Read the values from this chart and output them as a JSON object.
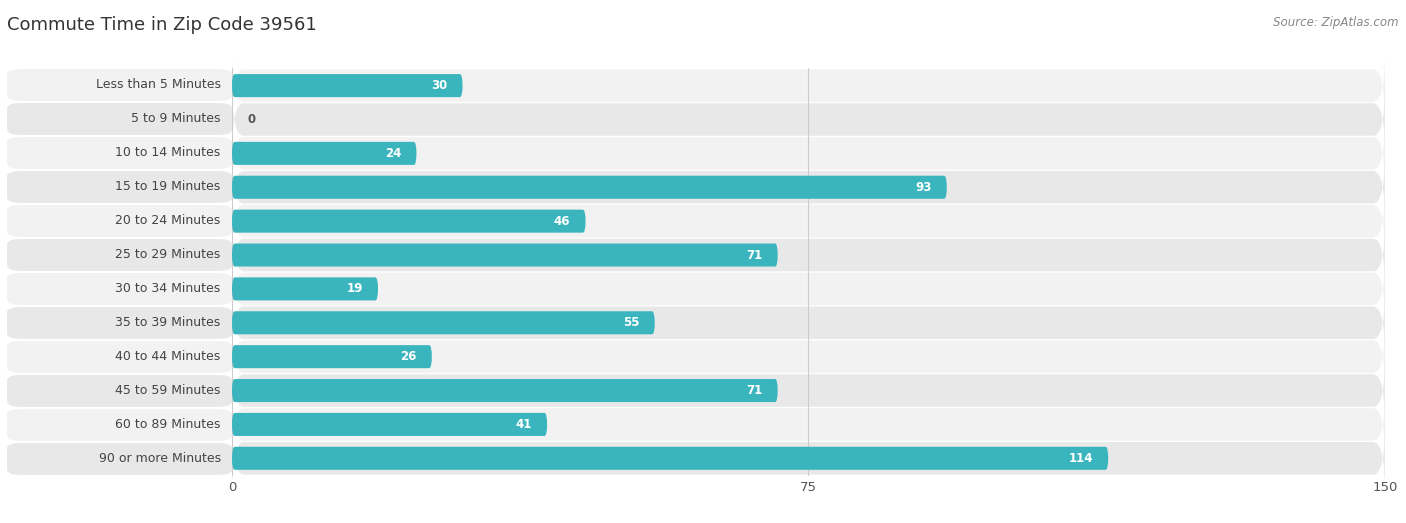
{
  "title": "Commute Time in Zip Code 39561",
  "source": "Source: ZipAtlas.com",
  "categories": [
    "Less than 5 Minutes",
    "5 to 9 Minutes",
    "10 to 14 Minutes",
    "15 to 19 Minutes",
    "20 to 24 Minutes",
    "25 to 29 Minutes",
    "30 to 34 Minutes",
    "35 to 39 Minutes",
    "40 to 44 Minutes",
    "45 to 59 Minutes",
    "60 to 89 Minutes",
    "90 or more Minutes"
  ],
  "values": [
    30,
    0,
    24,
    93,
    46,
    71,
    19,
    55,
    26,
    71,
    41,
    114
  ],
  "xlim": [
    0,
    150
  ],
  "xticks": [
    0,
    75,
    150
  ],
  "bar_color": "#3ab5be",
  "row_colors": [
    "#f2f2f2",
    "#e8e8e8"
  ],
  "bar_height": 0.68,
  "title_fontsize": 13,
  "label_fontsize": 9,
  "value_fontsize": 8.5,
  "source_fontsize": 8.5,
  "title_color": "#333333",
  "label_color": "#444444",
  "value_color_inside": "#ffffff",
  "value_color_outside": "#555555",
  "grid_color": "#cccccc",
  "inside_threshold": 12
}
